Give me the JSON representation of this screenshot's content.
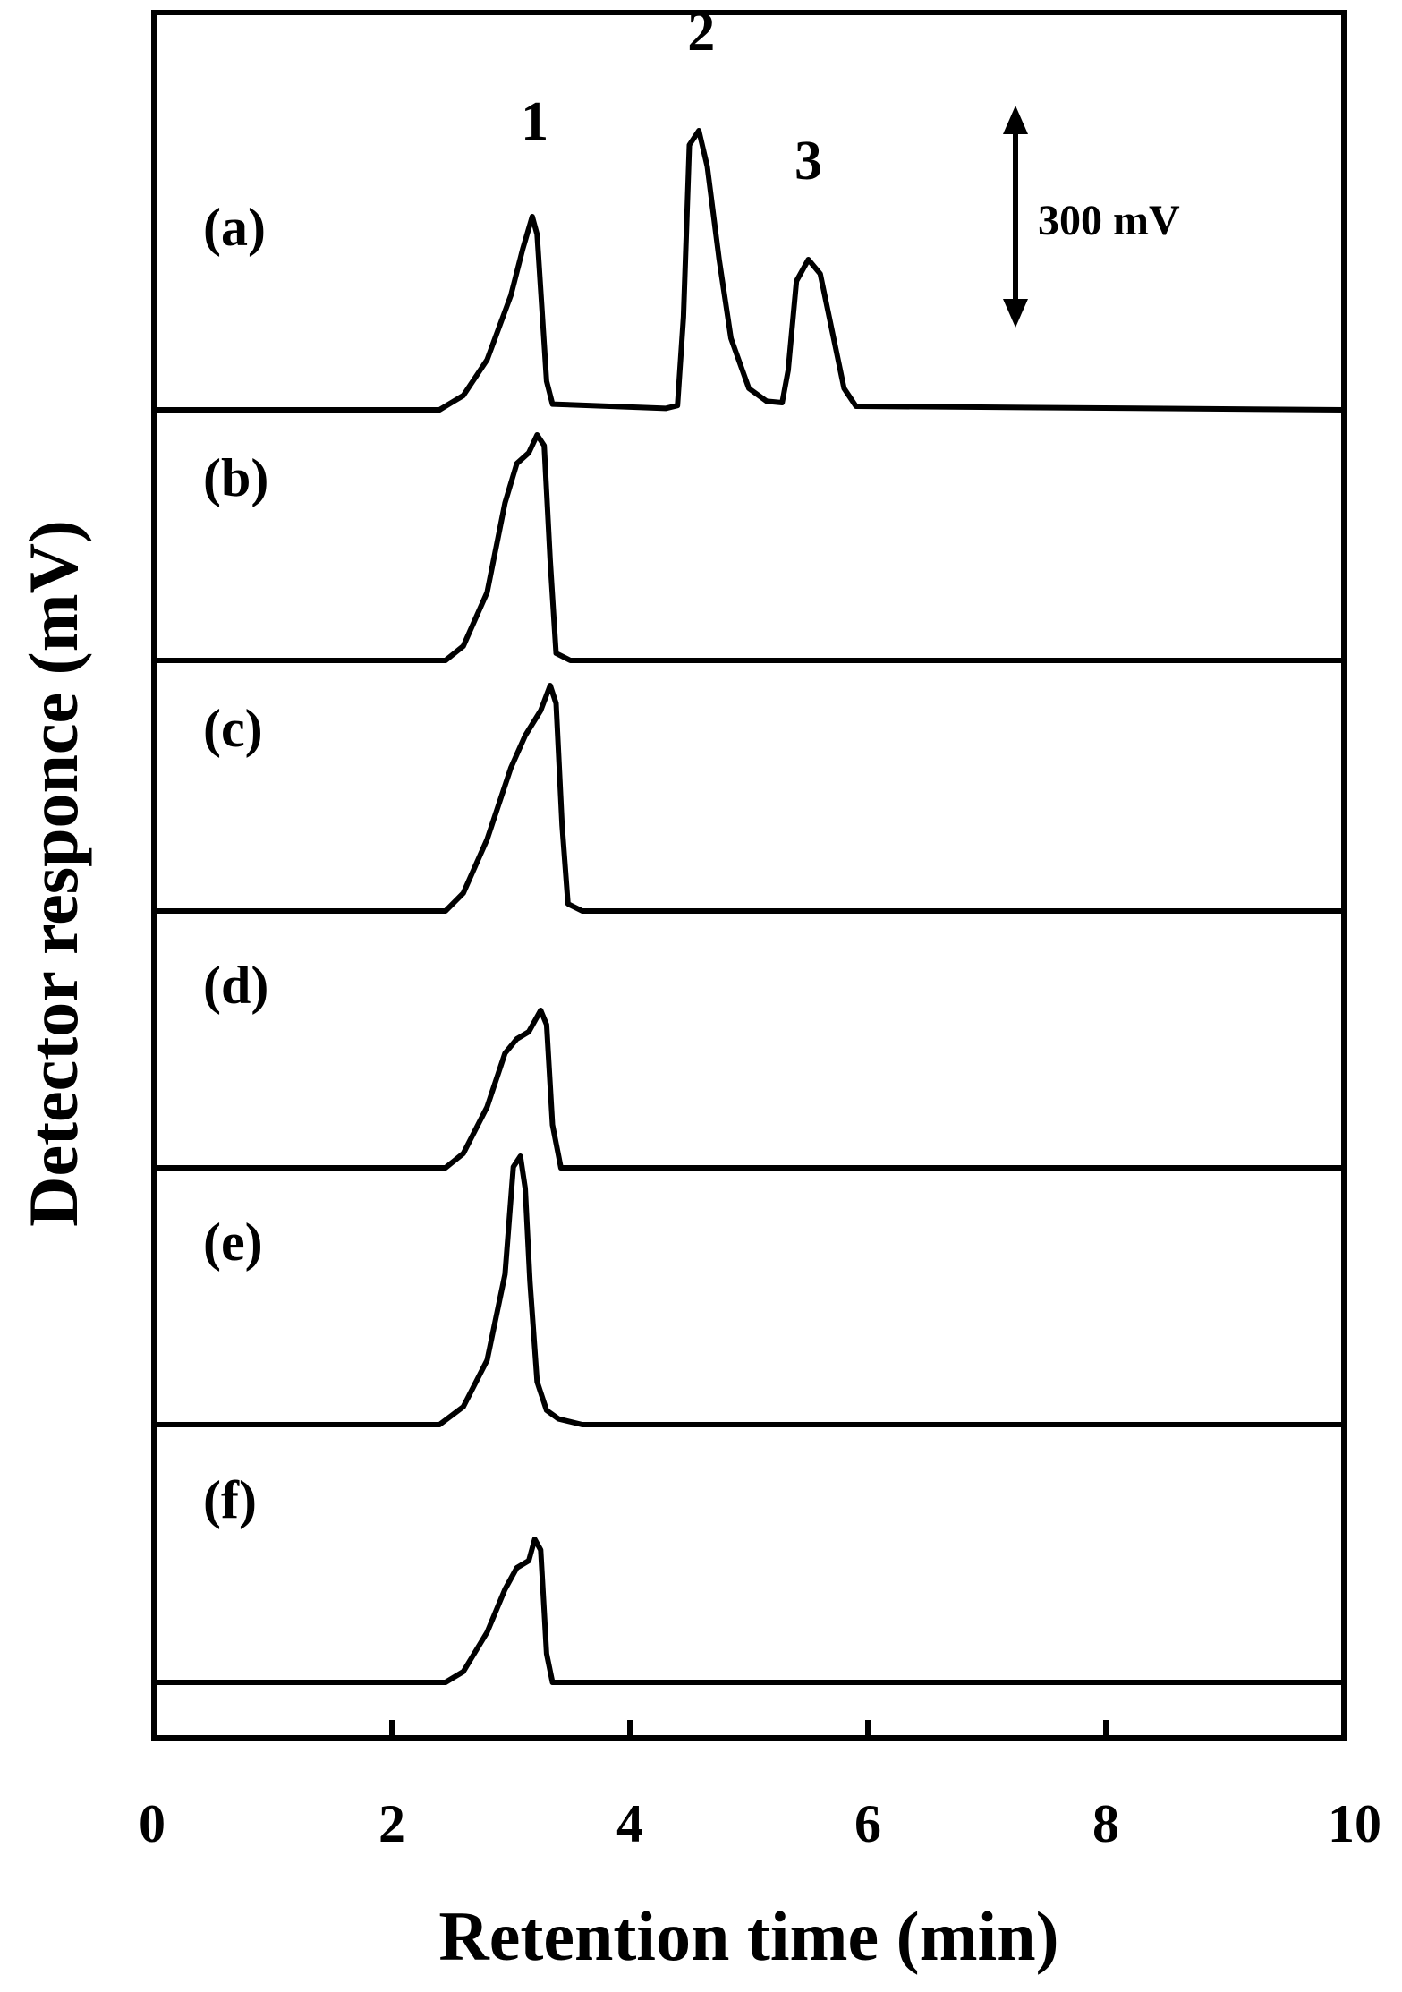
{
  "chart_data": {
    "type": "line",
    "title": "",
    "xlabel": "Retention time (min)",
    "ylabel": "Detector responce (mV)",
    "xlim": [
      0,
      10
    ],
    "x_ticks": [
      "0",
      "2",
      "4",
      "6",
      "8",
      "10"
    ],
    "x_tick_values": [
      0,
      2,
      4,
      6,
      8,
      10
    ],
    "y_ticks": [],
    "grid": false,
    "legend": "none",
    "line_color": "#000000",
    "scale_bar": {
      "label": "300 mV",
      "value_mV": 300
    },
    "peak_labels": [
      {
        "text": "1",
        "x": 3.2,
        "y_mV": 340
      },
      {
        "text": "2",
        "x": 4.6,
        "y_mV": 465
      },
      {
        "text": "3",
        "x": 5.5,
        "y_mV": 285
      }
    ],
    "series": [
      {
        "name": "(a)",
        "x": [
          0,
          2.4,
          2.6,
          2.8,
          3.0,
          3.1,
          3.18,
          3.22,
          3.3,
          3.35,
          4.3,
          4.4,
          4.45,
          4.5,
          4.58,
          4.65,
          4.75,
          4.85,
          5.0,
          5.15,
          5.28,
          5.33,
          5.4,
          5.5,
          5.6,
          5.7,
          5.8,
          5.9,
          10
        ],
        "y": [
          0,
          0,
          20,
          70,
          160,
          225,
          270,
          245,
          40,
          8,
          2,
          6,
          130,
          370,
          390,
          340,
          210,
          100,
          30,
          12,
          10,
          55,
          180,
          210,
          190,
          110,
          30,
          5,
          0
        ]
      },
      {
        "name": "(b)",
        "x": [
          0,
          2.45,
          2.6,
          2.8,
          2.95,
          3.05,
          3.15,
          3.22,
          3.28,
          3.33,
          3.38,
          3.5,
          10
        ],
        "y": [
          0,
          0,
          20,
          95,
          220,
          275,
          290,
          315,
          300,
          140,
          10,
          0,
          0
        ]
      },
      {
        "name": "(c)",
        "x": [
          0,
          2.45,
          2.6,
          2.8,
          3.0,
          3.12,
          3.25,
          3.33,
          3.38,
          3.43,
          3.48,
          3.6,
          10
        ],
        "y": [
          0,
          0,
          25,
          100,
          200,
          245,
          280,
          315,
          290,
          120,
          10,
          0,
          0
        ]
      },
      {
        "name": "(d)",
        "x": [
          0,
          2.45,
          2.6,
          2.8,
          2.95,
          3.05,
          3.15,
          3.25,
          3.3,
          3.35,
          3.42,
          10
        ],
        "y": [
          0,
          0,
          20,
          85,
          160,
          180,
          190,
          220,
          200,
          60,
          0,
          0
        ]
      },
      {
        "name": "(e)",
        "x": [
          0,
          2.4,
          2.6,
          2.8,
          2.95,
          3.02,
          3.08,
          3.12,
          3.16,
          3.22,
          3.3,
          3.4,
          3.6,
          10
        ],
        "y": [
          0,
          0,
          25,
          90,
          210,
          360,
          375,
          330,
          200,
          60,
          20,
          8,
          0,
          0
        ]
      },
      {
        "name": "(f)",
        "x": [
          0,
          2.45,
          2.6,
          2.8,
          2.95,
          3.05,
          3.15,
          3.2,
          3.25,
          3.3,
          3.35,
          10
        ],
        "y": [
          0,
          0,
          15,
          70,
          130,
          160,
          170,
          200,
          185,
          40,
          0,
          0
        ]
      }
    ]
  }
}
